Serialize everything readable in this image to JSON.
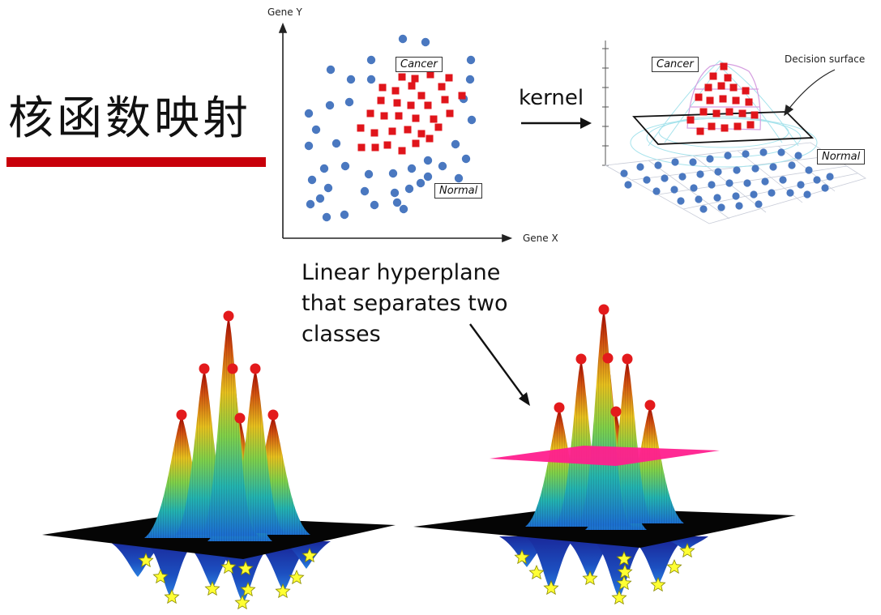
{
  "title": "核函数映射",
  "accent_color": "#c8000a",
  "scatter_2d": {
    "y_axis_label": "Gene Y",
    "x_axis_label": "Gene X",
    "cancer_label": "Cancer",
    "normal_label": "Normal",
    "normal_color": "#4a78c0",
    "cancer_color": "#e0151b"
  },
  "arrow_label": "kernel",
  "scatter_3d": {
    "cancer_label": "Cancer",
    "normal_label": "Normal",
    "surface_label": "Decision surface"
  },
  "annotation": "Linear hyperplane that separates two classes",
  "hyperplane_color": "#ff1f8e",
  "peak_marker_color": "#e31a1c",
  "star_marker_color": "#ffff33",
  "colormap": [
    "#0a1e8c",
    "#1c6fd0",
    "#23b3b0",
    "#7fd04a",
    "#e6c01e",
    "#d05010",
    "#a00000"
  ]
}
